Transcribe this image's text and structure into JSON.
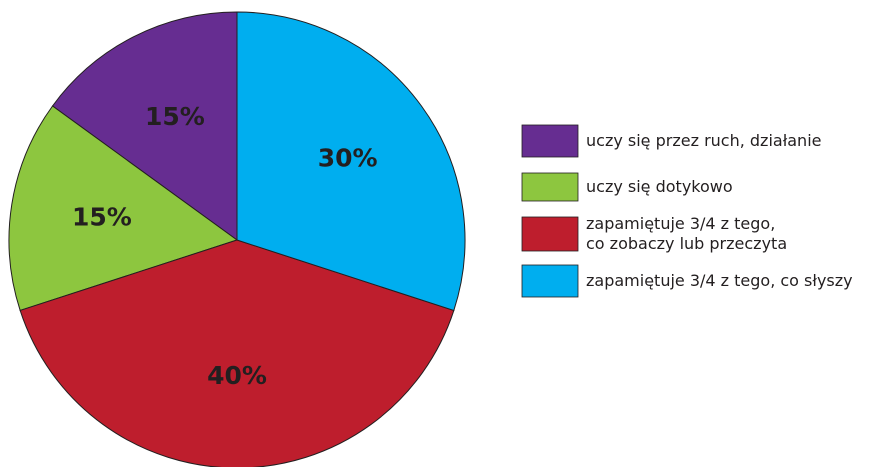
{
  "chart_data": {
    "type": "pie",
    "categories": [
      "uczy się przez ruch, działanie",
      "uczy się dotykowo",
      "zapamiętuje 3/4 z tego,\nco zobaczy lub przeczyta",
      "zapamiętuje 3/4 z tego, co słyszy"
    ],
    "values": [
      15,
      15,
      40,
      30
    ],
    "value_labels": [
      "15%",
      "15%",
      "40%",
      "30%"
    ],
    "colors": [
      "#662d91",
      "#8dc63f",
      "#be1e2d",
      "#00aeef"
    ]
  }
}
